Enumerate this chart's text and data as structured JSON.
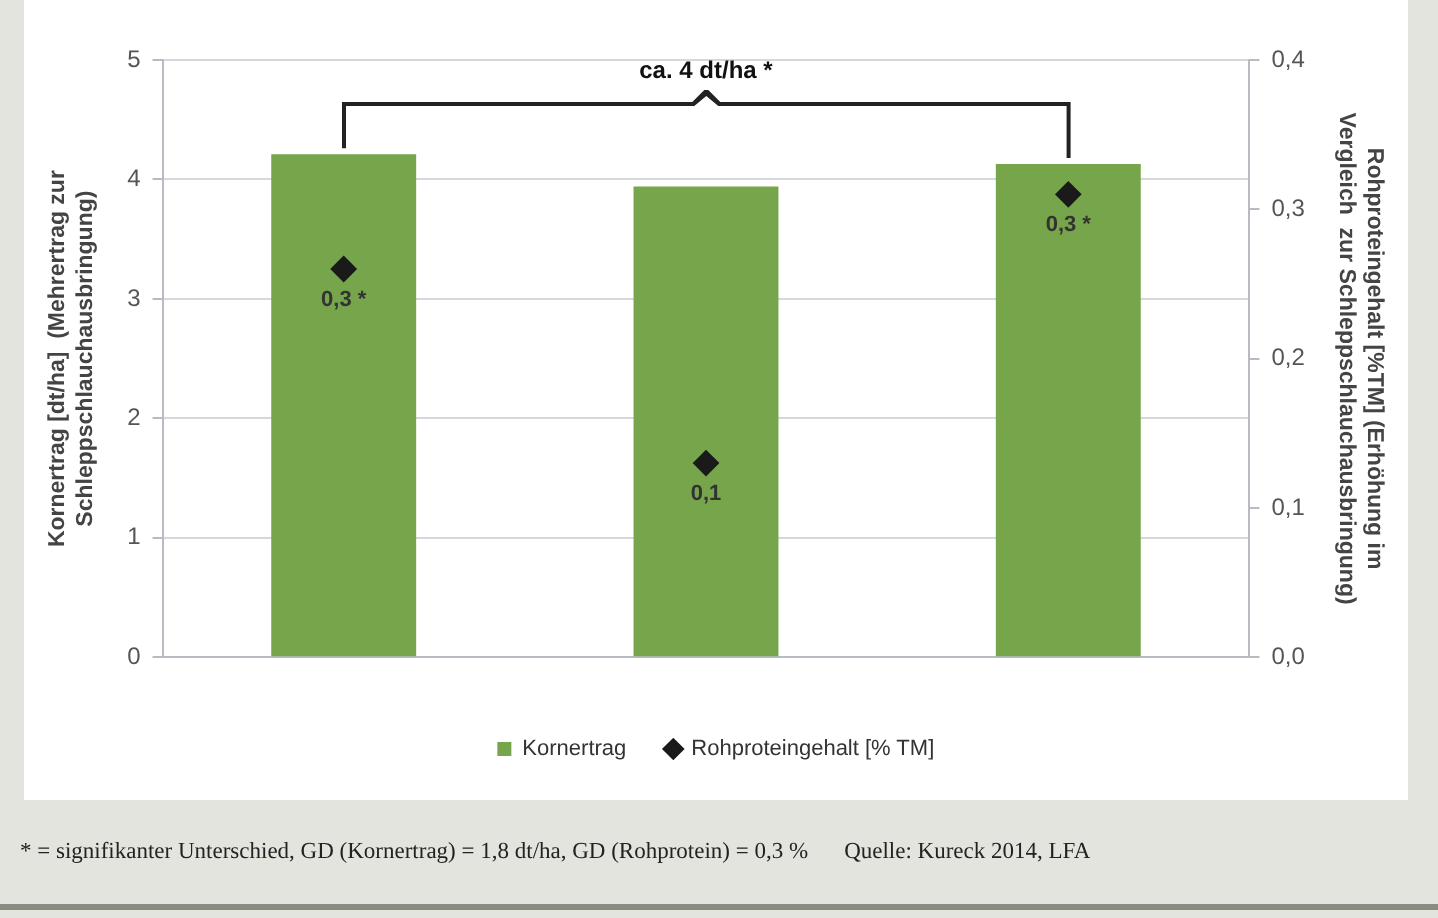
{
  "chart_data": {
    "type": "bar",
    "annotations": [
      "ca. 4 dt/ha *",
      "* = signifikanter Unterschied, GD (Kornertrag) = 1,8 dt/ha, GD (Rohprotein) = 0,3 %",
      "Quelle: Kureck 2014, LFA"
    ],
    "ylabel": "Kornertrag [dt/ha]  (Mehrertrag zur\nSchleppschlauchausbringung)",
    "y2label": "Rohproteingehalt [%TM] (Erhöhung im\nVergleich  zur Schleppschlauchausbringung)",
    "categories": [
      null,
      null,
      null
    ],
    "series": [
      {
        "name": "Kornertrag",
        "color": "#77a54b",
        "values": [
          4.21,
          3.94,
          4.13
        ]
      },
      {
        "name": "Rohproteingehalt [% TM]",
        "type": "scatter",
        "axis": "y2",
        "marker": "diamond",
        "color": "#1a1a1a",
        "values": [
          0.26,
          0.13,
          0.31
        ],
        "value_labels": [
          "0,3 *",
          "0,1",
          "0,3 *"
        ]
      }
    ],
    "ylim": [
      0,
      5
    ],
    "yticks": [
      0,
      1,
      2,
      3,
      4,
      5
    ],
    "y2lim": [
      0,
      0.4
    ],
    "y2ticks": [
      {
        "value": 0,
        "label": "0,0"
      },
      {
        "value": 0.1,
        "label": "0,1"
      },
      {
        "value": 0.2,
        "label": "0,2"
      },
      {
        "value": 0.3,
        "label": "0,3"
      },
      {
        "value": 0.4,
        "label": "0,4"
      }
    ],
    "grid": "y",
    "legend": "bottom"
  }
}
